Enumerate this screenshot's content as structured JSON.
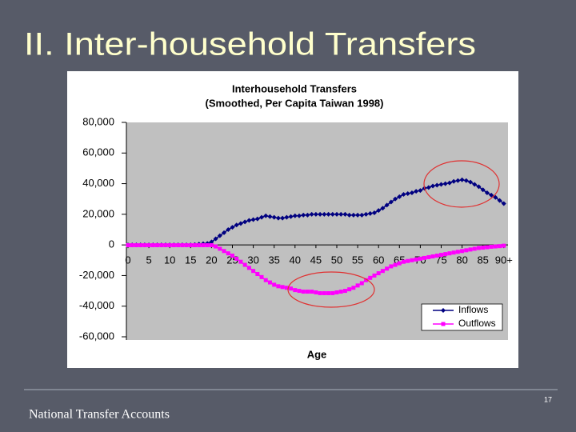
{
  "slide": {
    "title": "II. Inter-household Transfers",
    "footer": "National Transfer Accounts",
    "page_number": "17"
  },
  "chart_data": {
    "type": "line",
    "title": "Interhousehold Transfers",
    "subtitle": "(Smoothed, Per Capita Taiwan 1998)",
    "x_label": "Age",
    "x": [
      0,
      1,
      2,
      3,
      4,
      5,
      6,
      7,
      8,
      9,
      10,
      11,
      12,
      13,
      14,
      15,
      16,
      17,
      18,
      19,
      20,
      21,
      22,
      23,
      24,
      25,
      26,
      27,
      28,
      29,
      30,
      31,
      32,
      33,
      34,
      35,
      36,
      37,
      38,
      39,
      40,
      41,
      42,
      43,
      44,
      45,
      46,
      47,
      48,
      49,
      50,
      51,
      52,
      53,
      54,
      55,
      56,
      57,
      58,
      59,
      60,
      61,
      62,
      63,
      64,
      65,
      66,
      67,
      68,
      69,
      70,
      71,
      72,
      73,
      74,
      75,
      76,
      77,
      78,
      79,
      80,
      81,
      82,
      83,
      84,
      85,
      86,
      87,
      88,
      89,
      90
    ],
    "series": [
      {
        "name": "Inflows",
        "color": "#000080",
        "marker": "diamond",
        "values": [
          0,
          0,
          0,
          0,
          0,
          0,
          0,
          0,
          0,
          0,
          0,
          0,
          0,
          0,
          0,
          0,
          200,
          500,
          800,
          1000,
          2000,
          4000,
          6000,
          8000,
          10000,
          11500,
          13000,
          14000,
          15000,
          16000,
          16500,
          17000,
          18000,
          19000,
          18500,
          18000,
          17500,
          17500,
          18000,
          18500,
          19000,
          19000,
          19500,
          19500,
          20000,
          20000,
          20000,
          20000,
          20000,
          20000,
          20000,
          20000,
          20000,
          19500,
          19500,
          19500,
          19500,
          20000,
          20500,
          21000,
          22500,
          24000,
          26000,
          28000,
          30000,
          31500,
          33000,
          33500,
          34000,
          35000,
          35500,
          37000,
          37500,
          38500,
          39000,
          39500,
          40000,
          40500,
          41500,
          42000,
          42500,
          42000,
          41000,
          39500,
          38000,
          36000,
          34000,
          32500,
          31000,
          29000,
          27000
        ]
      },
      {
        "name": "Outflows",
        "color": "#ff00ff",
        "marker": "square",
        "values": [
          -200,
          -200,
          -200,
          -200,
          -200,
          -200,
          -200,
          -200,
          -200,
          -200,
          -200,
          -200,
          -200,
          -200,
          -200,
          -200,
          -200,
          -200,
          -200,
          -200,
          -200,
          -1000,
          -2500,
          -4000,
          -5500,
          -7000,
          -9000,
          -11000,
          -13000,
          -15000,
          -17000,
          -19000,
          -21000,
          -23000,
          -24500,
          -26000,
          -27000,
          -27500,
          -28000,
          -28500,
          -29500,
          -30000,
          -30500,
          -30500,
          -30500,
          -31000,
          -31500,
          -31500,
          -31500,
          -31500,
          -31000,
          -30500,
          -30000,
          -29000,
          -28000,
          -26500,
          -25000,
          -23000,
          -21500,
          -20000,
          -18500,
          -17000,
          -15500,
          -14000,
          -13000,
          -12000,
          -11000,
          -10500,
          -10000,
          -9500,
          -9000,
          -8500,
          -8000,
          -7500,
          -7000,
          -6500,
          -6000,
          -5500,
          -5000,
          -4500,
          -4000,
          -3500,
          -3000,
          -2500,
          -2000,
          -1800,
          -1500,
          -1200,
          -1000,
          -800,
          -500
        ]
      }
    ],
    "xlim": [
      0,
      91
    ],
    "xticks": [
      0,
      5,
      10,
      15,
      20,
      25,
      30,
      35,
      40,
      45,
      50,
      55,
      60,
      65,
      70,
      75,
      80,
      85,
      {
        "value": 90,
        "label": "90+"
      }
    ],
    "ylim": [
      -60000,
      80000
    ],
    "yticks": [
      {
        "value": -60000,
        "label": "-60,000"
      },
      {
        "value": -40000,
        "label": "-40,000"
      },
      {
        "value": -20000,
        "label": "-20,000"
      },
      0,
      {
        "value": 20000,
        "label": "20,000"
      },
      {
        "value": 40000,
        "label": "40,000"
      },
      {
        "value": 60000,
        "label": "60,000"
      },
      {
        "value": 80000,
        "label": "80,000"
      }
    ],
    "grid": false,
    "legend": "lower right"
  }
}
